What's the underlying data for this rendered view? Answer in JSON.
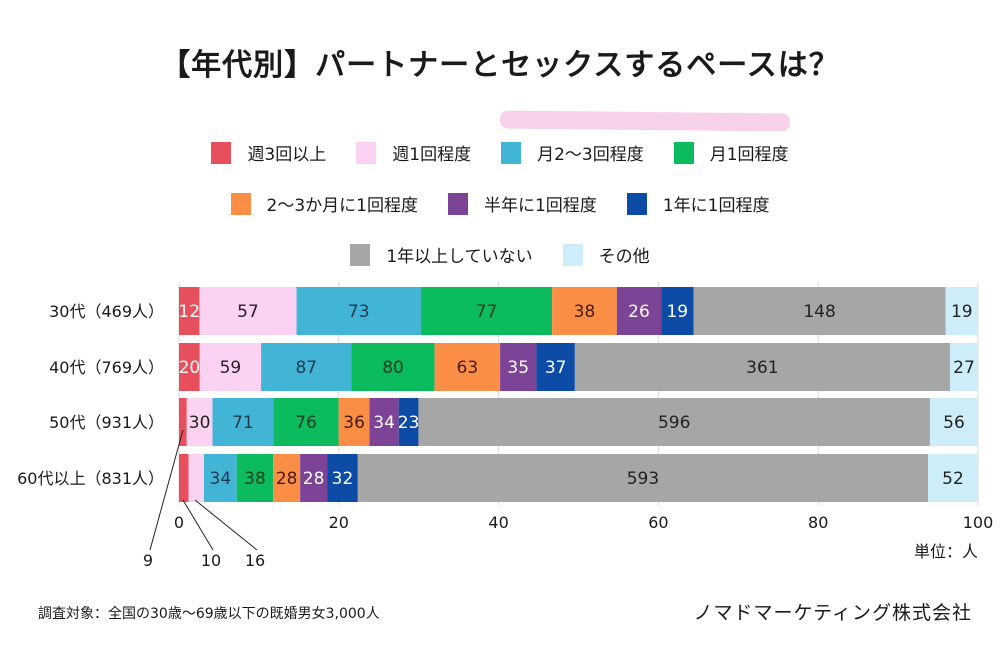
{
  "chart_data": {
    "type": "bar",
    "orientation": "horizontal",
    "stacked": "percent",
    "title": "【年代別】パートナーとセックスするペースは？",
    "categories": [
      "30代（469人）",
      "40代（769人）",
      "50代（931人）",
      "60代以上（831人）"
    ],
    "category_totals": [
      469,
      769,
      931,
      831
    ],
    "series": [
      {
        "name": "週3回以上",
        "color": "#e84f5d",
        "label_color": "#ffffff",
        "values": [
          12,
          20,
          9,
          10
        ]
      },
      {
        "name": "週1回程度",
        "color": "#fbd2f2",
        "label_color": "#222222",
        "values": [
          57,
          59,
          30,
          16
        ]
      },
      {
        "name": "月2～3回程度",
        "color": "#42b4d6",
        "label_color": "#1e3a4a",
        "values": [
          73,
          87,
          71,
          34
        ]
      },
      {
        "name": "月1回程度",
        "color": "#0dbb5f",
        "label_color": "#0c4022",
        "values": [
          77,
          80,
          76,
          38
        ]
      },
      {
        "name": "2～3か月に1回程度",
        "color": "#fa8e45",
        "label_color": "#4a1a10",
        "values": [
          38,
          63,
          36,
          28
        ]
      },
      {
        "name": "半年に1回程度",
        "color": "#7d4396",
        "label_color": "#ffffff",
        "values": [
          26,
          35,
          34,
          28
        ]
      },
      {
        "name": "1年に1回程度",
        "color": "#0d4ca6",
        "label_color": "#ffffff",
        "values": [
          19,
          37,
          23,
          32
        ]
      },
      {
        "name": "1年以上していない",
        "color": "#a6a6a6",
        "label_color": "#222222",
        "values": [
          148,
          361,
          596,
          593
        ]
      },
      {
        "name": "その他",
        "color": "#cdeef8",
        "label_color": "#222222",
        "values": [
          19,
          27,
          56,
          52
        ]
      }
    ],
    "outside_labels": [
      {
        "category_index": 2,
        "series_index": 0,
        "text": "9"
      },
      {
        "category_index": 3,
        "series_index": 0,
        "text": "10"
      },
      {
        "category_index": 3,
        "series_index": 1,
        "text": "16"
      }
    ],
    "xaxis": {
      "ticks": [
        0,
        20,
        40,
        60,
        80,
        100
      ],
      "tick_labels": [
        "0",
        "20",
        "40",
        "60",
        "80",
        "100"
      ],
      "range": [
        0,
        100
      ]
    },
    "grid": true,
    "legend_position": "top",
    "unit_label": "単位：人"
  },
  "footer": {
    "survey_note": "調査対象：全国の30歳～69歳以下の既婚男女3,000人",
    "company": "ノマドマーケティング株式会社"
  }
}
